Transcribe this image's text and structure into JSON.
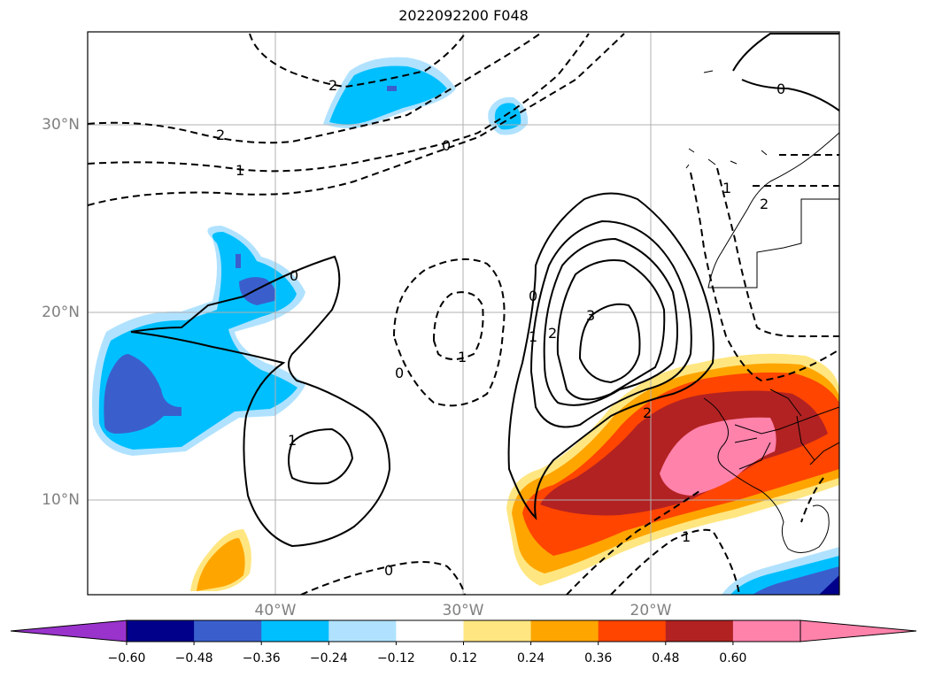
{
  "title": "2022092200 F048",
  "axes": {
    "lat_labels": [
      "30°N",
      "20°N",
      "10°N"
    ],
    "lon_labels": [
      "40°W",
      "30°W",
      "20°W"
    ]
  },
  "contour_labels": [
    "2",
    "2",
    "1",
    "0",
    "0",
    "1",
    "0",
    "1",
    "2",
    "3",
    "2",
    "1",
    "0",
    "1",
    "2",
    "0",
    "0",
    "1"
  ],
  "colorbar": {
    "ticks": [
      "−0.60",
      "−0.48",
      "−0.36",
      "−0.24",
      "−0.12",
      "0.12",
      "0.24",
      "0.36",
      "0.48",
      "0.60"
    ],
    "colors": [
      "#9933cc",
      "#00008b",
      "#3a5fcd",
      "#00bfff",
      "#b0e2ff",
      "#ffffff",
      "#ffe680",
      "#ffa500",
      "#ff4500",
      "#b22222",
      "#ff82ab",
      "#ff82ab"
    ]
  }
}
